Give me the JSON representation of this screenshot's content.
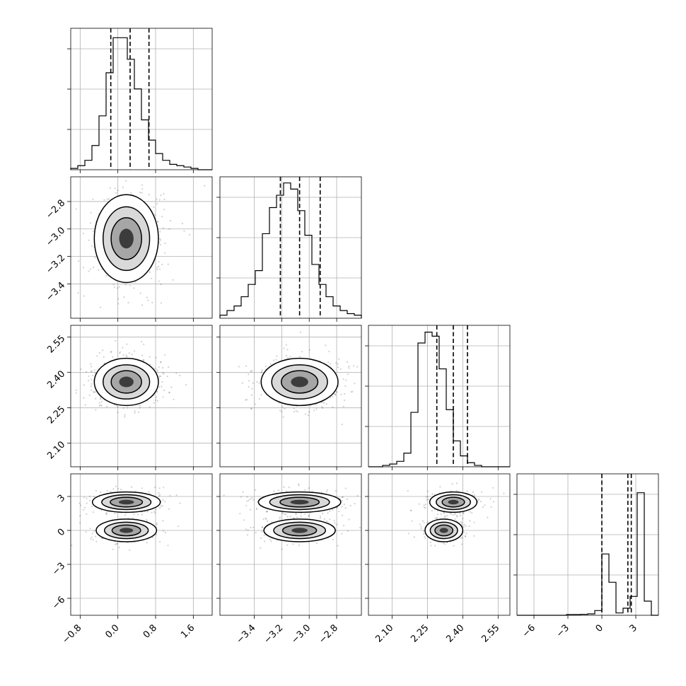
{
  "chart_data": {
    "type": "corner",
    "parameters": [
      {
        "range": [
          -1.0,
          2.0
        ],
        "ticks": [
          "-0.8",
          "0.0",
          "0.8",
          "1.6"
        ],
        "tick_values": [
          -0.8,
          0.0,
          0.8,
          1.6
        ],
        "quantiles": [
          -0.15,
          0.26,
          0.66
        ]
      },
      {
        "range": [
          -3.65,
          -2.62
        ],
        "ticks": [
          "-3.4",
          "-3.2",
          "-3.0",
          "-2.8"
        ],
        "tick_values": [
          -3.4,
          -3.2,
          -3.0,
          -2.8
        ],
        "quantiles": [
          -3.21,
          -3.07,
          -2.92
        ]
      },
      {
        "range": [
          2.0,
          2.6
        ],
        "ticks": [
          "2.10",
          "2.25",
          "2.40",
          "2.55"
        ],
        "tick_values": [
          2.1,
          2.25,
          2.4,
          2.55
        ],
        "quantiles": [
          2.29,
          2.36,
          2.42
        ]
      },
      {
        "range": [
          -7.5,
          5.0
        ],
        "ticks": [
          "-6",
          "-3",
          "0",
          "3"
        ],
        "tick_values": [
          -6,
          -3,
          0,
          3
        ],
        "quantiles": [
          0.0,
          2.3,
          2.6
        ]
      }
    ],
    "histograms": [
      {
        "edges_from": -1.0,
        "edges_to": 2.0,
        "counts": [
          1,
          3,
          7,
          18,
          40,
          72,
          98,
          98,
          82,
          60,
          37,
          22,
          12,
          7,
          4,
          3,
          2,
          1,
          0,
          0
        ],
        "ylim_max": 105
      },
      {
        "edges_from": -3.65,
        "edges_to": -2.62,
        "counts": [
          2,
          5,
          8,
          14,
          22,
          31,
          55,
          72,
          80,
          88,
          84,
          70,
          54,
          35,
          22,
          14,
          8,
          5,
          3,
          2
        ],
        "ylim_max": 92
      },
      {
        "edges_from": 2.0,
        "edges_to": 2.6,
        "counts": [
          0,
          0,
          1,
          2,
          4,
          10,
          40,
          91,
          99,
          96,
          72,
          42,
          19,
          8,
          3,
          1,
          0,
          0,
          0,
          0
        ],
        "ylim_max": 104
      },
      {
        "edges_from": -7.5,
        "edges_to": 5.0,
        "counts": [
          0,
          0,
          0,
          0,
          0,
          0,
          0,
          0.3,
          0.3,
          0.4,
          0.6,
          2,
          26,
          14,
          1,
          3,
          8,
          52,
          6,
          0
        ],
        "ylim_max": 60
      }
    ],
    "contours_2d": [
      {
        "row": 1,
        "col": 0,
        "blobs": [
          {
            "cx": 0.18,
            "cy": -3.07,
            "sx": 0.34,
            "sy": 0.16
          }
        ]
      },
      {
        "row": 2,
        "col": 0,
        "blobs": [
          {
            "cx": 0.18,
            "cy": 2.36,
            "sx": 0.34,
            "sy": 0.05
          }
        ]
      },
      {
        "row": 2,
        "col": 1,
        "blobs": [
          {
            "cx": -3.07,
            "cy": 2.36,
            "sx": 0.14,
            "sy": 0.05
          }
        ]
      },
      {
        "row": 3,
        "col": 0,
        "blobs": [
          {
            "cx": 0.18,
            "cy": 2.5,
            "sx": 0.36,
            "sy": 0.45
          },
          {
            "cx": 0.18,
            "cy": 0.0,
            "sx": 0.32,
            "sy": 0.5
          }
        ]
      },
      {
        "row": 3,
        "col": 1,
        "blobs": [
          {
            "cx": -3.07,
            "cy": 2.5,
            "sx": 0.15,
            "sy": 0.45
          },
          {
            "cx": -3.07,
            "cy": 0.0,
            "sx": 0.13,
            "sy": 0.5
          }
        ]
      },
      {
        "row": 3,
        "col": 2,
        "blobs": [
          {
            "cx": 2.36,
            "cy": 2.5,
            "sx": 0.05,
            "sy": 0.45
          },
          {
            "cx": 2.32,
            "cy": 0.0,
            "sx": 0.04,
            "sy": 0.5
          }
        ]
      }
    ],
    "grid": true,
    "colors": {
      "contour": "#000000",
      "hist": "#000000",
      "points": "#808080",
      "grid": "#b0b0b0"
    }
  }
}
